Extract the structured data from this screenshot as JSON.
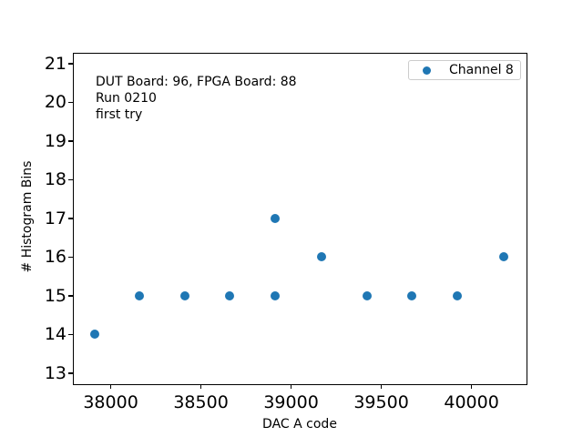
{
  "chart_data": {
    "type": "scatter",
    "title": "",
    "xlabel": "DAC A code",
    "ylabel": "# Histogram Bins",
    "xlim": [
      37790,
      40300
    ],
    "ylim": [
      12.74,
      21.28
    ],
    "xticks": [
      38000,
      38500,
      39000,
      39500,
      40000
    ],
    "yticks": [
      13,
      14,
      15,
      16,
      17,
      18,
      19,
      20,
      21
    ],
    "grid": false,
    "series": [
      {
        "name": "Channel 8",
        "color": "#1f77b4",
        "points": [
          {
            "x": 37910,
            "y": 14
          },
          {
            "x": 38160,
            "y": 15
          },
          {
            "x": 38410,
            "y": 15
          },
          {
            "x": 38660,
            "y": 15
          },
          {
            "x": 38910,
            "y": 15
          },
          {
            "x": 38910,
            "y": 17
          },
          {
            "x": 39170,
            "y": 16
          },
          {
            "x": 39420,
            "y": 15
          },
          {
            "x": 39670,
            "y": 15
          },
          {
            "x": 39920,
            "y": 15
          },
          {
            "x": 40180,
            "y": 16
          }
        ]
      }
    ],
    "legend": {
      "position": "upper right",
      "entries": [
        "Channel 8"
      ]
    },
    "annotation": {
      "lines": [
        "DUT Board: 96, FPGA Board: 88",
        "Run 0210",
        "first try"
      ]
    }
  }
}
